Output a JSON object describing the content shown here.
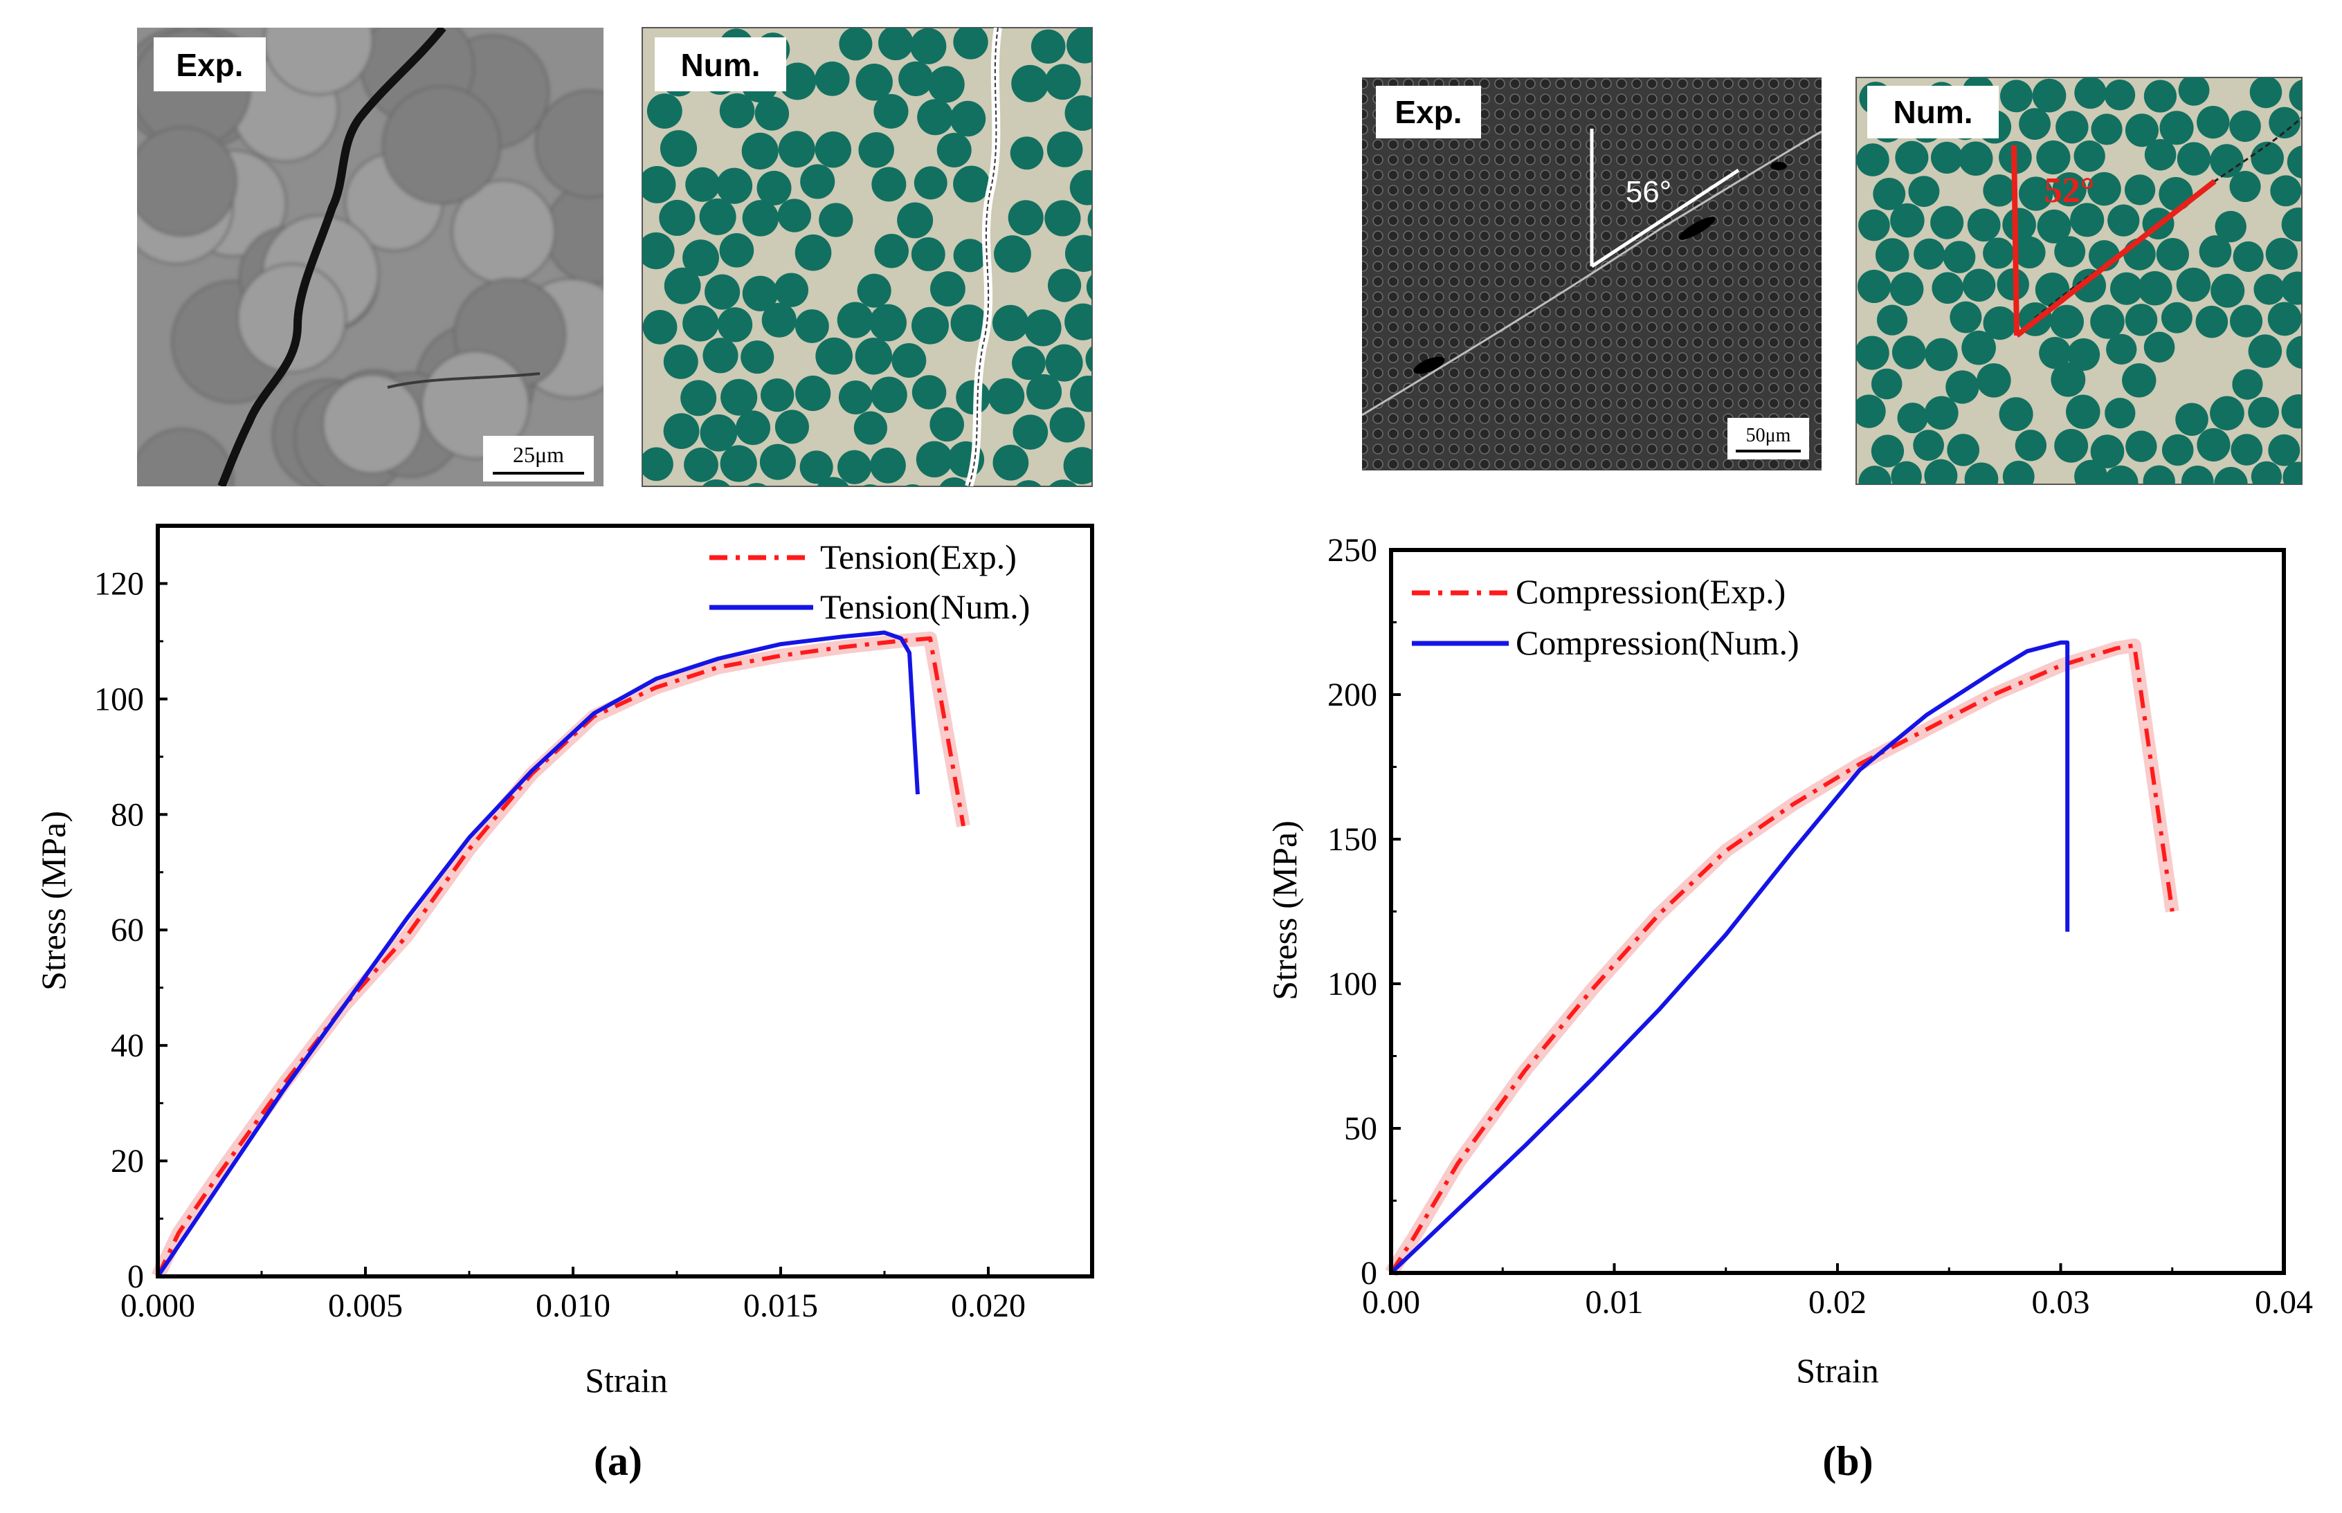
{
  "panels": [
    {
      "caption": "(a)",
      "exp_label": "Exp.",
      "num_label": "Num.",
      "scale_bar": "25μm",
      "chart": {
        "type": "line",
        "xlabel": "Strain",
        "ylabel": "Stress (MPa)",
        "xlim": [
          0,
          0.0225
        ],
        "ylim": [
          0,
          130
        ],
        "xticks": [
          0.0,
          0.005,
          0.01,
          0.015,
          0.02
        ],
        "xtick_labels": [
          "0.000",
          "0.005",
          "0.010",
          "0.015",
          "0.020"
        ],
        "yticks": [
          0,
          20,
          40,
          60,
          80,
          100,
          120
        ],
        "ytick_labels": [
          "0",
          "20",
          "40",
          "60",
          "80",
          "100",
          "120"
        ],
        "legend_position": "top-right",
        "series": [
          {
            "name": "Tension(Exp.)",
            "style": "dash-dot",
            "color": "#ff1a1a",
            "band_color": "#f4a0a0",
            "x": [
              0,
              0.0005,
              0.0015,
              0.003,
              0.0045,
              0.006,
              0.0075,
              0.009,
              0.0105,
              0.012,
              0.0135,
              0.015,
              0.0165,
              0.0178,
              0.0186,
              0.0194
            ],
            "y": [
              0,
              7.5,
              18,
              33,
              47,
              59,
              74,
              87,
              97,
              102,
              105.5,
              107.5,
              109,
              110,
              110.5,
              78
            ]
          },
          {
            "name": "Tension(Num.)",
            "style": "solid",
            "color": "#1414e6",
            "x": [
              0,
              0.0015,
              0.003,
              0.0045,
              0.006,
              0.0075,
              0.009,
              0.0105,
              0.012,
              0.0135,
              0.015,
              0.0165,
              0.0175,
              0.0179,
              0.0181,
              0.0183
            ],
            "y": [
              0,
              16,
              32,
              47,
              62,
              76,
              87.5,
              97.5,
              103.5,
              107,
              109.5,
              110.8,
              111.5,
              110.5,
              108,
              83.5
            ]
          }
        ]
      }
    },
    {
      "caption": "(b)",
      "exp_label": "Exp.",
      "num_label": "Num.",
      "scale_bar": "50μm",
      "angle_exp": "56°",
      "angle_num": "52°",
      "chart": {
        "type": "line",
        "xlabel": "Strain",
        "ylabel": "Stress (MPa)",
        "xlim": [
          0,
          0.04
        ],
        "ylim": [
          0,
          250
        ],
        "xticks": [
          0.0,
          0.01,
          0.02,
          0.03,
          0.04
        ],
        "xtick_labels": [
          "0.00",
          "0.01",
          "0.02",
          "0.03",
          "0.04"
        ],
        "yticks": [
          0,
          50,
          100,
          150,
          200,
          250
        ],
        "ytick_labels": [
          "0",
          "50",
          "100",
          "150",
          "200",
          "250"
        ],
        "legend_position": "top-left",
        "series": [
          {
            "name": "Compression(Exp.)",
            "style": "dash-dot",
            "color": "#ff1a1a",
            "band_color": "#f4a0a0",
            "x": [
              0,
              0.001,
              0.003,
              0.006,
              0.009,
              0.012,
              0.015,
              0.018,
              0.021,
              0.024,
              0.027,
              0.03,
              0.0325,
              0.0333,
              0.035
            ],
            "y": [
              0,
              12,
              38,
              70,
              98,
              124,
              146,
              162,
              176,
              188,
              200,
              210,
              216,
              217,
              125
            ]
          },
          {
            "name": "Compression(Num.)",
            "style": "solid",
            "color": "#1414e6",
            "x": [
              0,
              0.003,
              0.006,
              0.009,
              0.012,
              0.015,
              0.018,
              0.021,
              0.024,
              0.027,
              0.0285,
              0.03,
              0.0303,
              0.0303
            ],
            "y": [
              0,
              22,
              44,
              67,
              91,
              117,
              146,
              174,
              193,
              208,
              215,
              218,
              218,
              118
            ]
          }
        ]
      }
    }
  ],
  "colors": {
    "fiber": "#127060",
    "matrix": "#cdcab5",
    "red_line": "#e61b1b",
    "blue_line": "#1414e6"
  }
}
